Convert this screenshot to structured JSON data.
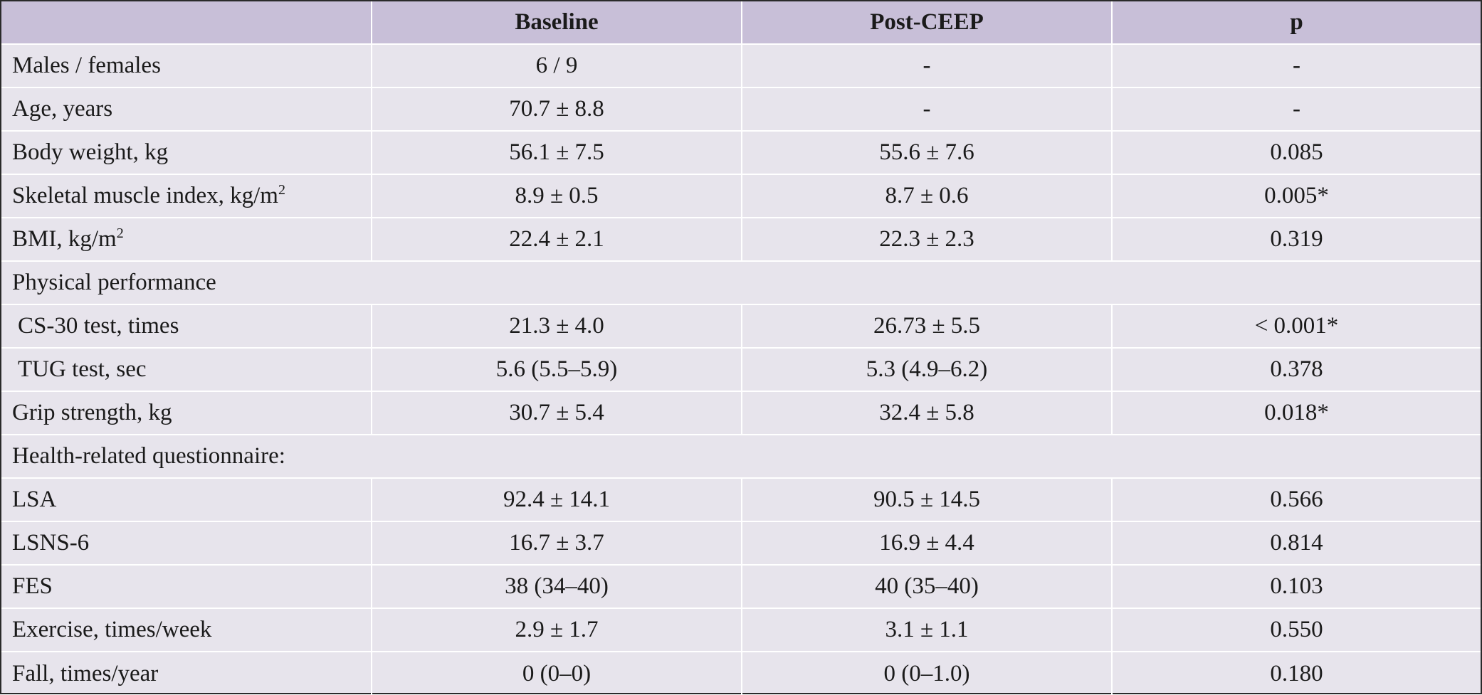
{
  "table": {
    "headers": [
      "",
      "Baseline",
      "Post-CEEP",
      "p"
    ],
    "rows": [
      {
        "label": "Males / females",
        "baseline": "6 / 9",
        "post": "-",
        "p": "-"
      },
      {
        "label": "Age, years",
        "baseline": "70.7 ± 8.8",
        "post": "-",
        "p": "-"
      },
      {
        "label": "Body weight, kg",
        "baseline": "56.1 ± 7.5",
        "post": "55.6 ± 7.6",
        "p": "0.085"
      },
      {
        "label": "Skeletal muscle index, kg/m",
        "sup": "2",
        "baseline": "8.9 ± 0.5",
        "post": "8.7 ± 0.6",
        "p": "0.005*"
      },
      {
        "label": "BMI, kg/m",
        "sup": "2",
        "baseline": "22.4 ± 2.1",
        "post": "22.3 ± 2.3",
        "p": "0.319"
      },
      {
        "section": "Physical performance"
      },
      {
        "label": "CS-30 test, times",
        "indent": true,
        "baseline": "21.3 ± 4.0",
        "post": "26.73 ± 5.5",
        "p": "< 0.001*"
      },
      {
        "label": "TUG test, sec",
        "indent": true,
        "baseline": "5.6 (5.5–5.9)",
        "post": "5.3 (4.9–6.2)",
        "p": "0.378"
      },
      {
        "label": "Grip strength, kg",
        "baseline": "30.7 ± 5.4",
        "post": "32.4 ± 5.8",
        "p": "0.018*"
      },
      {
        "section": "Health-related questionnaire:"
      },
      {
        "label": "LSA",
        "baseline": "92.4 ± 14.1",
        "post": "90.5 ± 14.5",
        "p": "0.566"
      },
      {
        "label": "LSNS-6",
        "baseline": "16.7 ± 3.7",
        "post": "16.9 ± 4.4",
        "p": "0.814"
      },
      {
        "label": "FES",
        "baseline": "38 (34–40)",
        "post": "40 (35–40)",
        "p": "0.103"
      },
      {
        "label": "Exercise, times/week",
        "baseline": "2.9 ± 1.7",
        "post": "3.1 ± 1.1",
        "p": "0.550"
      },
      {
        "label": "Fall, times/year",
        "baseline": "0 (0–0)",
        "post": "0 (0–1.0)",
        "p": "0.180"
      }
    ]
  },
  "colors": {
    "header_bg": "#c8bfd8",
    "body_bg": "#e7e4ec",
    "grid": "#ffffff",
    "frame": "#2a2a2a"
  }
}
